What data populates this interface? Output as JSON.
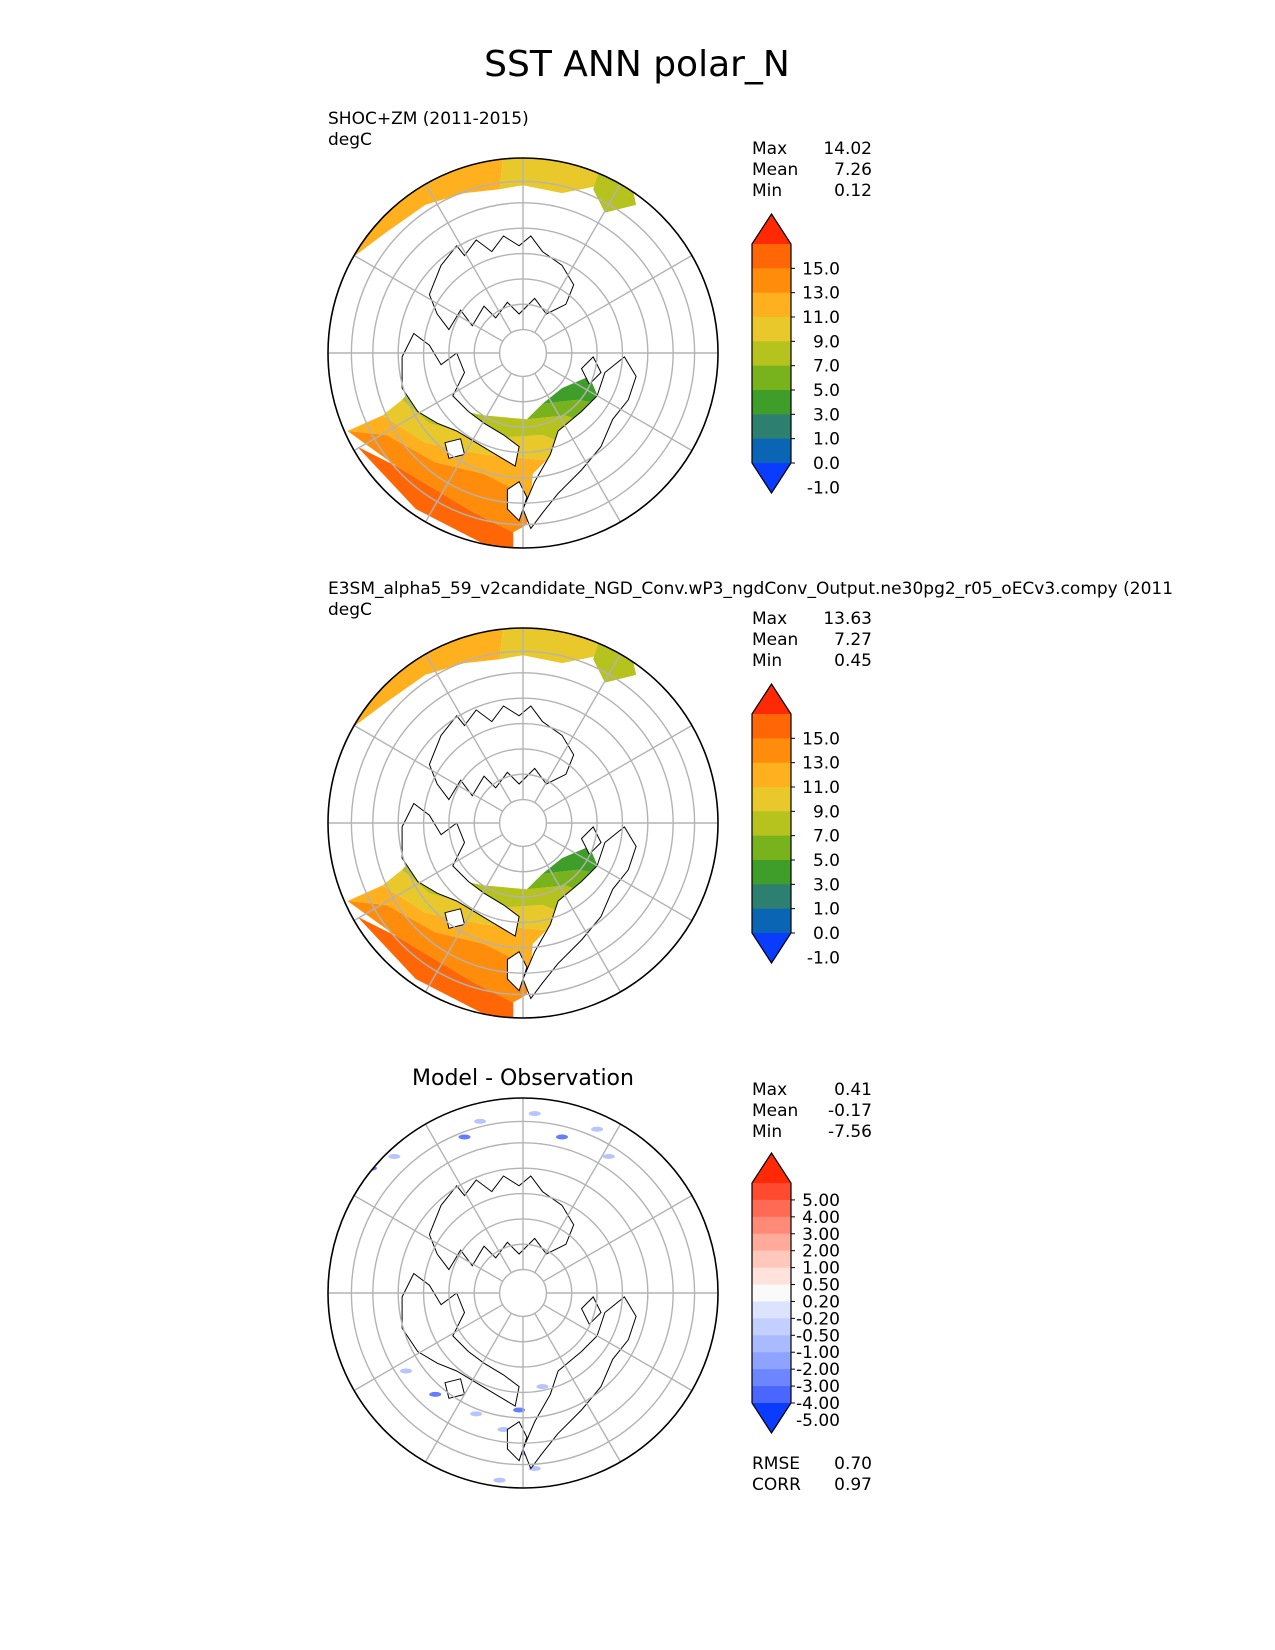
{
  "figure": {
    "title": "SST ANN polar_N"
  },
  "chart_data": [
    {
      "type": "heatmap",
      "projection": "north-polar-stereographic",
      "title": "SHOC+ZM (2011-2015)",
      "units": "degC",
      "stats": [
        {
          "label": "Max",
          "value": "14.02"
        },
        {
          "label": "Mean",
          "value": "7.26"
        },
        {
          "label": "Min",
          "value": "0.12"
        }
      ],
      "colorbar": {
        "levels": [
          "15.0",
          "13.0",
          "11.0",
          "9.0",
          "7.0",
          "5.0",
          "3.0",
          "1.0",
          "0.0",
          "-1.0"
        ],
        "colors": [
          "#ff2a05",
          "#ff6605",
          "#ff8c0a",
          "#ffb01f",
          "#e8c82a",
          "#b6c21e",
          "#78b21c",
          "#3f9e2a",
          "#2d8070",
          "#0a66b4",
          "#0a3cff"
        ]
      },
      "fields": [
        {
          "region": "north-pacific",
          "levels": [
            9,
            7,
            5
          ]
        },
        {
          "region": "north-atlantic",
          "levels": [
            13,
            11,
            9,
            7,
            5,
            3,
            1
          ]
        }
      ]
    },
    {
      "type": "heatmap",
      "projection": "north-polar-stereographic",
      "title": "E3SM_alpha5_59_v2candidate_NGD_Conv.wP3_ngdConv_Output.ne30pg2_r05_oECv3.compy (2011",
      "units": "degC",
      "stats": [
        {
          "label": "Max",
          "value": "13.63"
        },
        {
          "label": "Mean",
          "value": "7.27"
        },
        {
          "label": "Min",
          "value": "0.45"
        }
      ],
      "colorbar": {
        "levels": [
          "15.0",
          "13.0",
          "11.0",
          "9.0",
          "7.0",
          "5.0",
          "3.0",
          "1.0",
          "0.0",
          "-1.0"
        ],
        "colors": [
          "#ff2a05",
          "#ff6605",
          "#ff8c0a",
          "#ffb01f",
          "#e8c82a",
          "#b6c21e",
          "#78b21c",
          "#3f9e2a",
          "#2d8070",
          "#0a66b4",
          "#0a3cff"
        ]
      },
      "fields": [
        {
          "region": "north-pacific",
          "levels": [
            9,
            7,
            5
          ]
        },
        {
          "region": "north-atlantic",
          "levels": [
            13,
            11,
            9,
            7,
            5,
            3,
            1
          ]
        }
      ]
    },
    {
      "type": "heatmap",
      "projection": "north-polar-stereographic",
      "title": "Model - Observation",
      "units": "",
      "stats": [
        {
          "label": "Max",
          "value": "0.41"
        },
        {
          "label": "Mean",
          "value": "-0.17"
        },
        {
          "label": "Min",
          "value": "-7.56"
        }
      ],
      "colorbar": {
        "levels": [
          "5.00",
          "4.00",
          "3.00",
          "2.00",
          "1.00",
          "0.50",
          "0.20",
          "-0.20",
          "-0.50",
          "-1.00",
          "-2.00",
          "-3.00",
          "-4.00",
          "-5.00"
        ],
        "colors": [
          "#ff2a05",
          "#ff4a30",
          "#ff6a55",
          "#ff8a78",
          "#ffaa9a",
          "#ffc8bc",
          "#ffe2dc",
          "#fafafa",
          "#dce3ff",
          "#c3cfff",
          "#a9baff",
          "#8ea3ff",
          "#6d86ff",
          "#4a66ff",
          "#0a3cff"
        ]
      },
      "metrics": [
        {
          "label": "RMSE",
          "value": "0.70"
        },
        {
          "label": "CORR",
          "value": "0.97"
        }
      ]
    }
  ]
}
